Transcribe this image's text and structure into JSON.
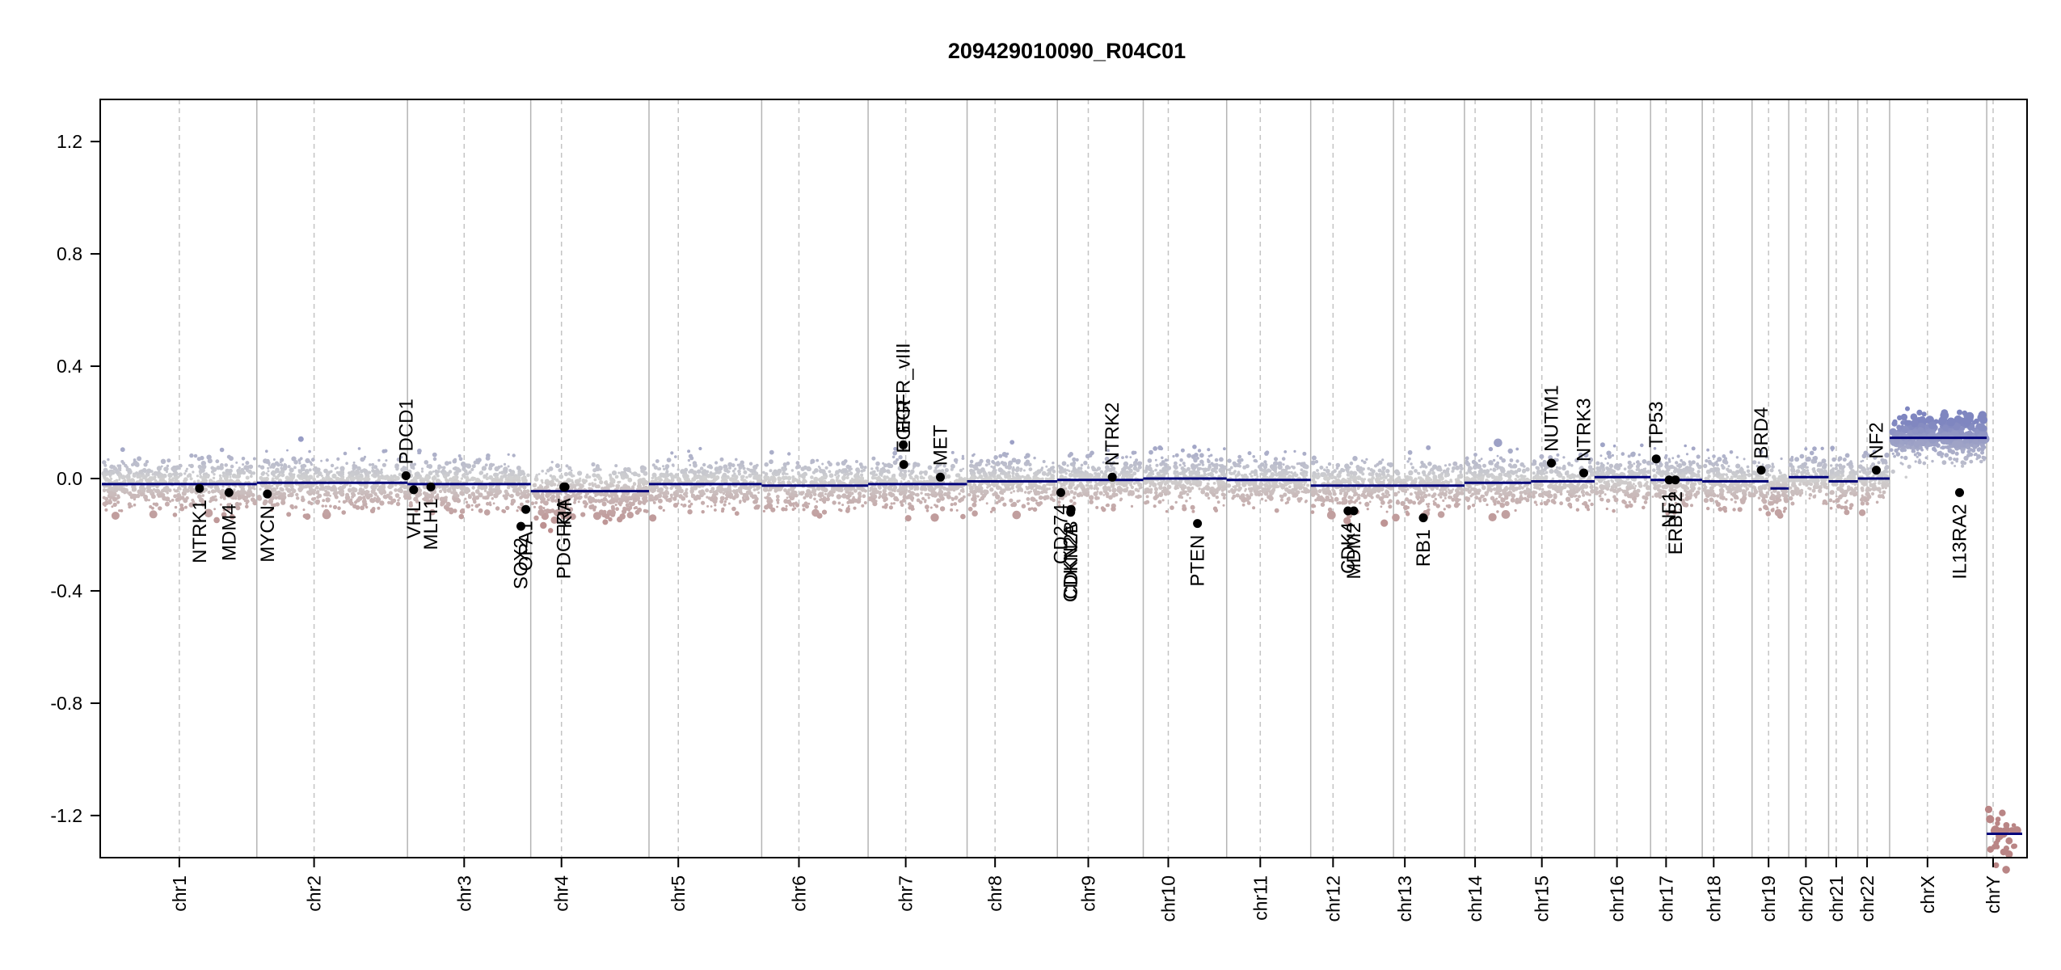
{
  "chart_data": {
    "type": "scatter",
    "title": "209429010090_R04C01",
    "xlabel": "",
    "ylabel": "",
    "ylim": [
      -1.35,
      1.35
    ],
    "yticks": [
      -1.2,
      -0.8,
      -0.4,
      0.0,
      0.4,
      0.8,
      1.2
    ],
    "ytick_labels": [
      "-1.2",
      "-0.8",
      "-0.4",
      "0.0",
      "0.4",
      "0.8",
      "1.2"
    ],
    "grid": false,
    "point_colors": {
      "gain": "#7f86c0",
      "neutral": "#d0d0d0",
      "loss": "#b98585"
    },
    "segment_color": "#00007a",
    "chromosomes": [
      {
        "name": "chr1",
        "size": 249,
        "centromere": 0.5,
        "segments": [
          {
            "start": 0,
            "end": 1,
            "value": -0.02
          }
        ]
      },
      {
        "name": "chr2",
        "size": 242,
        "centromere": 0.38,
        "segments": [
          {
            "start": 0,
            "end": 1,
            "value": -0.015
          }
        ]
      },
      {
        "name": "chr3",
        "size": 198,
        "centromere": 0.46,
        "segments": [
          {
            "start": 0,
            "end": 1,
            "value": -0.02
          }
        ]
      },
      {
        "name": "chr4",
        "size": 190,
        "centromere": 0.26,
        "segments": [
          {
            "start": 0,
            "end": 1,
            "value": -0.045
          }
        ]
      },
      {
        "name": "chr5",
        "size": 181,
        "centromere": 0.26,
        "segments": [
          {
            "start": 0,
            "end": 1,
            "value": -0.02
          }
        ]
      },
      {
        "name": "chr6",
        "size": 171,
        "centromere": 0.35,
        "segments": [
          {
            "start": 0,
            "end": 1,
            "value": -0.025
          }
        ]
      },
      {
        "name": "chr7",
        "size": 159,
        "centromere": 0.38,
        "segments": [
          {
            "start": 0,
            "end": 1,
            "value": -0.02
          }
        ]
      },
      {
        "name": "chr8",
        "size": 145,
        "centromere": 0.31,
        "segments": [
          {
            "start": 0,
            "end": 1,
            "value": -0.01
          }
        ]
      },
      {
        "name": "chr9",
        "size": 138,
        "centromere": 0.36,
        "segments": [
          {
            "start": 0,
            "end": 1,
            "value": -0.005
          }
        ]
      },
      {
        "name": "chr10",
        "size": 134,
        "centromere": 0.3,
        "segments": [
          {
            "start": 0,
            "end": 1,
            "value": 0.0
          }
        ]
      },
      {
        "name": "chr11",
        "size": 135,
        "centromere": 0.4,
        "segments": [
          {
            "start": 0,
            "end": 1,
            "value": -0.005
          }
        ]
      },
      {
        "name": "chr12",
        "size": 133,
        "centromere": 0.27,
        "segments": [
          {
            "start": 0,
            "end": 1,
            "value": -0.025
          }
        ]
      },
      {
        "name": "chr13",
        "size": 114,
        "centromere": 0.16,
        "segments": [
          {
            "start": 0,
            "end": 1,
            "value": -0.025
          }
        ]
      },
      {
        "name": "chr14",
        "size": 107,
        "centromere": 0.16,
        "segments": [
          {
            "start": 0,
            "end": 1,
            "value": -0.015
          }
        ]
      },
      {
        "name": "chr15",
        "size": 102,
        "centromere": 0.17,
        "segments": [
          {
            "start": 0,
            "end": 1,
            "value": -0.01
          }
        ]
      },
      {
        "name": "chr16",
        "size": 90,
        "centromere": 0.4,
        "segments": [
          {
            "start": 0,
            "end": 1,
            "value": 0.005
          }
        ]
      },
      {
        "name": "chr17",
        "size": 83,
        "centromere": 0.3,
        "segments": [
          {
            "start": 0,
            "end": 1,
            "value": -0.005
          }
        ]
      },
      {
        "name": "chr18",
        "size": 80,
        "centromere": 0.23,
        "segments": [
          {
            "start": 0,
            "end": 1,
            "value": -0.01
          }
        ]
      },
      {
        "name": "chr19",
        "size": 59,
        "centromere": 0.45,
        "segments": [
          {
            "start": 0,
            "end": 0.45,
            "value": -0.01
          },
          {
            "start": 0.5,
            "end": 1,
            "value": -0.035
          }
        ]
      },
      {
        "name": "chr20",
        "size": 64,
        "centromere": 0.43,
        "segments": [
          {
            "start": 0,
            "end": 1,
            "value": 0.005
          }
        ]
      },
      {
        "name": "chr21",
        "size": 47,
        "centromere": 0.26,
        "segments": [
          {
            "start": 0,
            "end": 1,
            "value": -0.01
          }
        ]
      },
      {
        "name": "chr22",
        "size": 51,
        "centromere": 0.29,
        "segments": [
          {
            "start": 0,
            "end": 1,
            "value": 0.0
          }
        ]
      },
      {
        "name": "chrX",
        "size": 156,
        "centromere": 0.39,
        "segments": [
          {
            "start": 0,
            "end": 1,
            "value": 0.145
          }
        ]
      },
      {
        "name": "chrY",
        "size": 57,
        "centromere": 0.18,
        "segments": [
          {
            "start": 0,
            "end": 1,
            "value": -1.265
          }
        ]
      }
    ],
    "genes": [
      {
        "name": "NTRK1",
        "chr": "chr1",
        "pos": 0.63,
        "value": -0.035
      },
      {
        "name": "MDM4",
        "chr": "chr1",
        "pos": 0.82,
        "value": -0.05
      },
      {
        "name": "MYCN",
        "chr": "chr2",
        "pos": 0.07,
        "value": -0.055
      },
      {
        "name": "PDCD1",
        "chr": "chr2",
        "pos": 0.99,
        "value": 0.01
      },
      {
        "name": "VHL",
        "chr": "chr3",
        "pos": 0.05,
        "value": -0.04
      },
      {
        "name": "MLH1",
        "chr": "chr3",
        "pos": 0.19,
        "value": -0.03
      },
      {
        "name": "SOX2",
        "chr": "chr3",
        "pos": 0.92,
        "value": -0.17
      },
      {
        "name": "OPA1",
        "chr": "chr3",
        "pos": 0.96,
        "value": -0.11
      },
      {
        "name": "PDGFRA",
        "chr": "chr4",
        "pos": 0.28,
        "value": -0.03
      },
      {
        "name": "KIT",
        "chr": "chr4",
        "pos": 0.29,
        "value": -0.03
      },
      {
        "name": "EGFR",
        "chr": "chr7",
        "pos": 0.36,
        "value": 0.05
      },
      {
        "name": "EGFR_vIII",
        "chr": "chr7",
        "pos": 0.355,
        "value": 0.12
      },
      {
        "name": "MET",
        "chr": "chr7",
        "pos": 0.73,
        "value": 0.005
      },
      {
        "name": "CD274",
        "chr": "chr9",
        "pos": 0.04,
        "value": -0.05
      },
      {
        "name": "CDKN2A",
        "chr": "chr9",
        "pos": 0.155,
        "value": -0.12
      },
      {
        "name": "CDKN2B",
        "chr": "chr9",
        "pos": 0.16,
        "value": -0.11
      },
      {
        "name": "NTRK2",
        "chr": "chr9",
        "pos": 0.64,
        "value": 0.005
      },
      {
        "name": "PTEN",
        "chr": "chr10",
        "pos": 0.65,
        "value": -0.16
      },
      {
        "name": "CDK4",
        "chr": "chr12",
        "pos": 0.45,
        "value": -0.115
      },
      {
        "name": "MDM2",
        "chr": "chr12",
        "pos": 0.52,
        "value": -0.115
      },
      {
        "name": "RB1",
        "chr": "chr13",
        "pos": 0.42,
        "value": -0.14
      },
      {
        "name": "NUTM1",
        "chr": "chr15",
        "pos": 0.32,
        "value": 0.055
      },
      {
        "name": "NTRK3",
        "chr": "chr15",
        "pos": 0.83,
        "value": 0.02
      },
      {
        "name": "TP53",
        "chr": "chr17",
        "pos": 0.11,
        "value": 0.07
      },
      {
        "name": "NF1",
        "chr": "chr17",
        "pos": 0.36,
        "value": -0.005
      },
      {
        "name": "ERBB2",
        "chr": "chr17",
        "pos": 0.48,
        "value": -0.005
      },
      {
        "name": "BRD4",
        "chr": "chr19",
        "pos": 0.25,
        "value": 0.03
      },
      {
        "name": "NF2",
        "chr": "chr22",
        "pos": 0.58,
        "value": 0.03
      },
      {
        "name": "IL13RA2",
        "chr": "chrX",
        "pos": 0.72,
        "value": -0.05
      }
    ]
  }
}
